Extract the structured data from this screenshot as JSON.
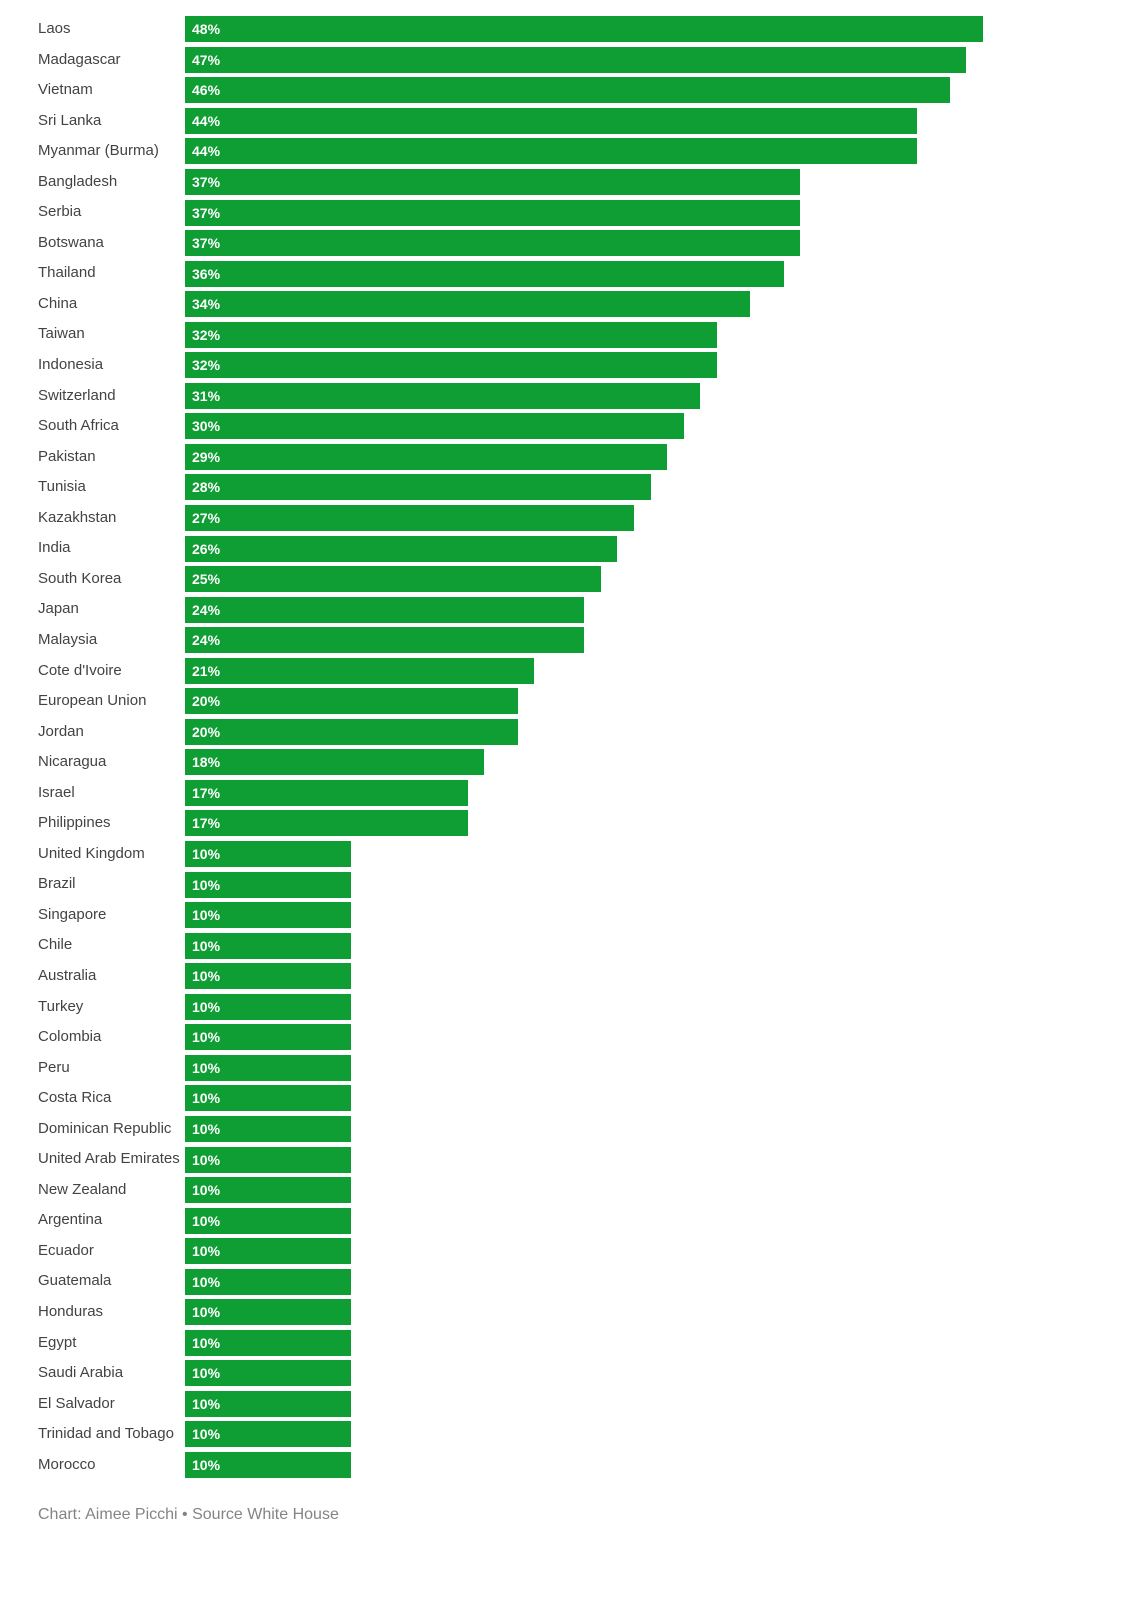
{
  "chart_data": {
    "type": "bar",
    "orientation": "horizontal",
    "title": "",
    "xlabel": "",
    "ylabel": "",
    "xlim": [
      0,
      48
    ],
    "grid": false,
    "legend": false,
    "bar_color": "#0f9e34",
    "value_label_color": "#ffffff",
    "value_suffix": "%",
    "categories": [
      "Laos",
      "Madagascar",
      "Vietnam",
      "Sri Lanka",
      "Myanmar (Burma)",
      "Bangladesh",
      "Serbia",
      "Botswana",
      "Thailand",
      "China",
      "Taiwan",
      "Indonesia",
      "Switzerland",
      "South Africa",
      "Pakistan",
      "Tunisia",
      "Kazakhstan",
      "India",
      "South Korea",
      "Japan",
      "Malaysia",
      "Cote d'Ivoire",
      "European Union",
      "Jordan",
      "Nicaragua",
      "Israel",
      "Philippines",
      "United Kingdom",
      "Brazil",
      "Singapore",
      "Chile",
      "Australia",
      "Turkey",
      "Colombia",
      "Peru",
      "Costa Rica",
      "Dominican Republic",
      "United Arab Emirates",
      "New Zealand",
      "Argentina",
      "Ecuador",
      "Guatemala",
      "Honduras",
      "Egypt",
      "Saudi Arabia",
      "El Salvador",
      "Trinidad and Tobago",
      "Morocco"
    ],
    "values": [
      48,
      47,
      46,
      44,
      44,
      37,
      37,
      37,
      36,
      34,
      32,
      32,
      31,
      30,
      29,
      28,
      27,
      26,
      25,
      24,
      24,
      21,
      20,
      20,
      18,
      17,
      17,
      10,
      10,
      10,
      10,
      10,
      10,
      10,
      10,
      10,
      10,
      10,
      10,
      10,
      10,
      10,
      10,
      10,
      10,
      10,
      10,
      10
    ]
  },
  "footer": {
    "credit": "Chart: Aimee Picchi • Source White House"
  }
}
